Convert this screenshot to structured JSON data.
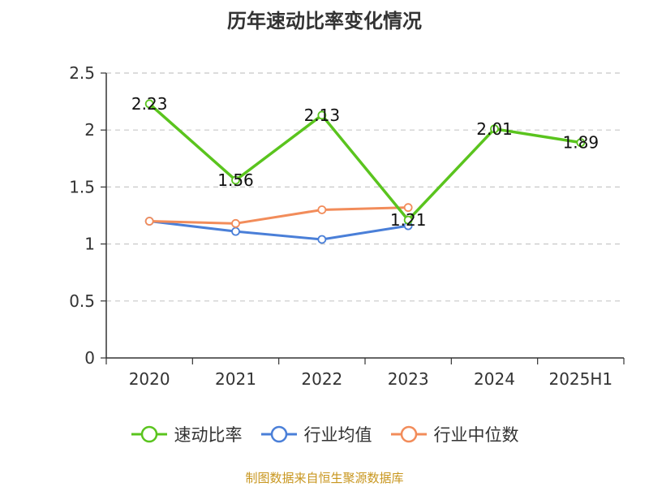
{
  "title": "历年速动比率变化情况",
  "source": "制图数据来自恒生聚源数据库",
  "chart_data": {
    "type": "line",
    "title": "历年速动比率变化情况",
    "xlabel": "",
    "ylabel": "",
    "categories": [
      "2020",
      "2021",
      "2022",
      "2023",
      "2024",
      "2025H1"
    ],
    "ylim": [
      0,
      2.5
    ],
    "yticks": [
      0,
      0.5,
      1,
      1.5,
      2,
      2.5
    ],
    "ytick_labels": [
      "0",
      "0.5",
      "1",
      "1.5",
      "2",
      "2.5"
    ],
    "grid": true,
    "legend_position": "bottom",
    "series": [
      {
        "name": "速动比率",
        "color": "#5ac41e",
        "values": [
          2.23,
          1.56,
          2.13,
          1.21,
          2.01,
          1.89
        ],
        "labels": [
          "2.23",
          "1.56",
          "2.13",
          "1.21",
          "2.01",
          "1.89"
        ]
      },
      {
        "name": "行业均值",
        "color": "#4a7fd8",
        "values": [
          1.2,
          1.11,
          1.04,
          1.16,
          null,
          null
        ]
      },
      {
        "name": "行业中位数",
        "color": "#f28c5a",
        "values": [
          1.2,
          1.18,
          1.3,
          1.32,
          null,
          null
        ]
      }
    ]
  }
}
